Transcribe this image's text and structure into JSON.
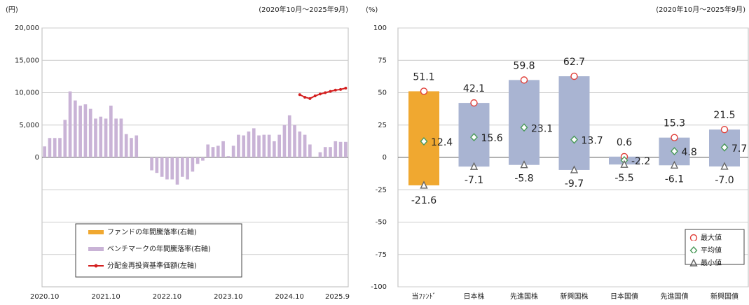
{
  "chart_data": [
    {
      "type": "combo",
      "y_unit": "(円)",
      "period": "(2020年10月～2025年9月)",
      "ylim": [
        -20000,
        20000
      ],
      "yticks": [
        {
          "value": 20000,
          "label": "20,000"
        },
        {
          "value": 15000,
          "label": "15,000"
        },
        {
          "value": 10000,
          "label": "10,000"
        },
        {
          "value": 5000,
          "label": "5,000"
        },
        0
      ],
      "minor_gridlines": [
        -5000,
        -10000,
        -15000
      ],
      "y2lim": [
        -100,
        100
      ],
      "categories": [
        "2020.10",
        null,
        null,
        null,
        null,
        null,
        null,
        null,
        null,
        null,
        null,
        null,
        "2021.10",
        null,
        null,
        null,
        null,
        null,
        null,
        null,
        null,
        null,
        null,
        null,
        "2022.10",
        null,
        null,
        null,
        null,
        null,
        null,
        null,
        null,
        null,
        null,
        null,
        "2023.10",
        null,
        null,
        null,
        null,
        null,
        null,
        null,
        null,
        null,
        null,
        null,
        "2024.10",
        null,
        null,
        null,
        null,
        null,
        null,
        null,
        null,
        null,
        null,
        "2025.9"
      ],
      "series": [
        {
          "name": "ファンドの年間騰落率(右軸)",
          "color": "#f0a830",
          "kind": "bar",
          "axis": "y2",
          "values": [
            null,
            null,
            null,
            null,
            null,
            null,
            null,
            null,
            null,
            null,
            null,
            null,
            null,
            null,
            null,
            null,
            null,
            null,
            null,
            null,
            null,
            null,
            null,
            null,
            null,
            null,
            null,
            null,
            null,
            null,
            null,
            null,
            null,
            null,
            null,
            null,
            null,
            null,
            null,
            null,
            null,
            null,
            null,
            null,
            null,
            null,
            null,
            null,
            null,
            null,
            null,
            null,
            null,
            null,
            null,
            null,
            null,
            null,
            null,
            null
          ]
        },
        {
          "name": "ベンチマークの年間騰落率(右軸)",
          "color": "#c9b3d6",
          "kind": "bar",
          "axis": "y2",
          "values": [
            8.5,
            15,
            15,
            15,
            29,
            51,
            44,
            40,
            41,
            37.5,
            30,
            31.5,
            30,
            40,
            30,
            30,
            18,
            15,
            17,
            0,
            0,
            -10,
            -12,
            -15,
            -17,
            -17,
            -21,
            -15,
            -17,
            -11,
            -5,
            -2.5,
            10,
            8,
            9,
            12.5,
            1,
            9,
            17.5,
            17,
            20,
            22.5,
            17,
            17.5,
            17.5,
            12.5,
            17.5,
            25,
            32.5,
            25,
            20,
            17.5,
            10,
            0,
            4,
            8,
            8,
            12.5,
            12,
            12
          ]
        },
        {
          "name": "分配金再投資基準価額(左軸)",
          "color": "#d42020",
          "kind": "line",
          "values": [
            null,
            null,
            null,
            null,
            null,
            null,
            null,
            null,
            null,
            null,
            null,
            null,
            null,
            null,
            null,
            null,
            null,
            null,
            null,
            null,
            null,
            null,
            null,
            null,
            null,
            null,
            null,
            null,
            null,
            null,
            null,
            null,
            null,
            null,
            null,
            null,
            null,
            null,
            null,
            null,
            null,
            null,
            null,
            null,
            null,
            null,
            null,
            null,
            null,
            null,
            9700,
            9300,
            9100,
            9500,
            9800,
            10000,
            10200,
            10400,
            10500,
            10700
          ]
        }
      ]
    },
    {
      "type": "range",
      "y_unit": "(%)",
      "period": "(2020年10月～2025年9月)",
      "ylim": [
        -100,
        100
      ],
      "yticks": [
        100,
        75,
        50,
        25,
        0,
        -25,
        -50,
        -75,
        -100
      ],
      "categories": [
        "当ﾌｧﾝﾄﾞ",
        "日本株",
        "先進国株",
        "新興国株",
        "日本国債",
        "先進国債",
        "新興国債"
      ],
      "bar_colors": [
        "#f0a830",
        "#a9b4d2",
        "#a9b4d2",
        "#a9b4d2",
        "#a9b4d2",
        "#a9b4d2",
        "#a9b4d2"
      ],
      "series": [
        {
          "name": "最大値",
          "color": "#e0403a",
          "marker": "circle",
          "values": [
            51.1,
            42.1,
            59.8,
            62.7,
            0.6,
            15.3,
            21.5
          ]
        },
        {
          "name": "平均値",
          "color": "#4a9a5a",
          "marker": "diamond",
          "values": [
            12.4,
            15.6,
            23.1,
            13.7,
            -2.2,
            4.8,
            7.7
          ]
        },
        {
          "name": "最小値",
          "color": "#666666",
          "marker": "triangle",
          "values": [
            -21.6,
            -7.1,
            -5.8,
            -9.7,
            -5.5,
            -6.1,
            -7
          ],
          "value_labels": [
            "-21.6",
            "-7.1",
            "-5.8",
            "-9.7",
            "-5.5",
            "-6.1",
            "-7.0"
          ]
        }
      ]
    }
  ]
}
